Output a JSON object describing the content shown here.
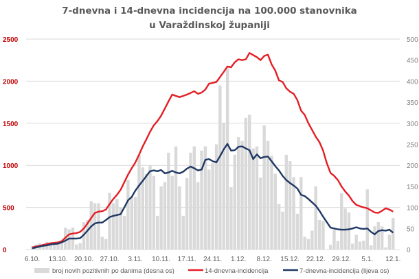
{
  "chart_data": {
    "type": "bar+line",
    "title_line1": "7-dnevna i 14-dnevna incidencija na 100.000 stanovnika",
    "title_line2": "u Varaždinskoj županiji",
    "left_axis": {
      "ticks": [
        "0",
        "500",
        "1000",
        "1500",
        "2000",
        "2500"
      ],
      "range": [
        0,
        2500
      ],
      "color": "#c00000"
    },
    "right_axis": {
      "ticks": [
        "0",
        "50",
        "100",
        "150",
        "200",
        "250",
        "300",
        "350",
        "400",
        "450",
        "500"
      ],
      "range": [
        0,
        500
      ],
      "color": "#7f7f7f"
    },
    "x_tick_labels": [
      "6.10.",
      "13.10.",
      "20.10.",
      "27.10.",
      "3.11.",
      "10.11.",
      "17.11.",
      "24.11.",
      "1.12.",
      "8.12.",
      "15.12.",
      "22.12.",
      "29.12.",
      "5.1.",
      "12.1."
    ],
    "x_tick_every_days": 7,
    "start_date": "6.10.",
    "end_date": "12.1.",
    "grid": true,
    "legend_placement": "bottom",
    "series": [
      {
        "name": "broj novih pozitivnih po danima (desna os)",
        "type": "bar",
        "axis": "right",
        "color": "#d9d9d9",
        "values": [
          8,
          12,
          15,
          10,
          18,
          12,
          10,
          15,
          18,
          52,
          48,
          52,
          12,
          15,
          65,
          70,
          115,
          110,
          110,
          30,
          25,
          135,
          110,
          120,
          100,
          80,
          165,
          125,
          125,
          225,
          195,
          180,
          200,
          175,
          80,
          150,
          160,
          230,
          175,
          245,
          150,
          80,
          170,
          230,
          245,
          160,
          235,
          245,
          190,
          205,
          250,
          390,
          301,
          430,
          148,
          225,
          267,
          258,
          313,
          320,
          240,
          245,
          171,
          295,
          258,
          223,
          180,
          108,
          90,
          225,
          210,
          172,
          85,
          172,
          30,
          25,
          45,
          150,
          70,
          68,
          0,
          11,
          47,
          20,
          134,
          98,
          88,
          14,
          35,
          19,
          21,
          143,
          10,
          55,
          65,
          55,
          5,
          35,
          75
        ]
      },
      {
        "name": "14-dnevna-incidencija",
        "type": "line",
        "axis": "right-scale",
        "color": "#e31e24",
        "values": [
          5,
          7,
          9,
          11,
          13,
          15,
          16,
          17,
          20,
          28,
          36,
          38,
          39,
          42,
          50,
          62,
          75,
          87,
          90,
          91,
          95,
          108,
          120,
          130,
          142,
          160,
          178,
          193,
          207,
          225,
          245,
          262,
          280,
          295,
          305,
          318,
          335,
          352,
          368,
          365,
          362,
          365,
          368,
          372,
          376,
          370,
          373,
          380,
          394,
          396,
          398,
          410,
          422,
          435,
          433,
          445,
          452,
          450,
          452,
          467,
          462,
          457,
          450,
          460,
          463,
          440,
          425,
          402,
          398,
          383,
          375,
          370,
          355,
          330,
          320,
          300,
          284,
          268,
          255,
          235,
          205,
          182,
          175,
          165,
          150,
          138,
          128,
          115,
          106,
          103,
          100,
          98,
          93,
          88,
          87,
          92,
          98,
          95,
          90
        ]
      },
      {
        "name": "7-dnevna-incidencija (lijeva os)",
        "type": "line",
        "axis": "right-scale",
        "color": "#1f3864",
        "values": [
          3,
          5,
          7,
          9,
          10,
          12,
          13,
          14,
          17,
          21,
          26,
          26,
          26,
          27,
          35,
          45,
          55,
          62,
          64,
          64,
          70,
          77,
          80,
          82,
          84,
          100,
          117,
          125,
          140,
          152,
          163,
          175,
          186,
          188,
          186,
          189,
          181,
          183,
          187,
          183,
          181,
          185,
          192,
          197,
          193,
          188,
          190,
          213,
          215,
          210,
          207,
          222,
          238,
          251,
          235,
          236,
          244,
          245,
          240,
          236,
          215,
          226,
          217,
          220,
          221,
          210,
          198,
          188,
          175,
          165,
          158,
          152,
          145,
          130,
          127,
          120,
          112,
          104,
          92,
          78,
          65,
          52,
          50,
          48,
          47,
          47,
          48,
          50,
          53,
          50,
          49,
          50,
          42,
          36,
          44,
          46,
          45,
          47,
          40
        ]
      }
    ]
  }
}
